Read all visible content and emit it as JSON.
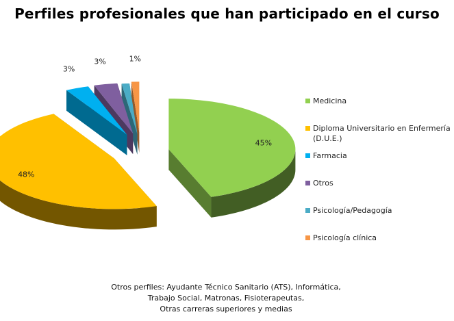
{
  "chart_data": {
    "type": "pie",
    "title": "Perfiles profesionales que han participado en el curso",
    "categories": [
      "Medicina",
      "Diploma Universitario en Enfermería (D.U.E.)",
      "Farmacia",
      "Otros",
      "Psicología/Pedagogía",
      "Psicología clínica"
    ],
    "values": [
      45,
      48,
      3,
      3,
      1,
      1
    ],
    "labels": [
      "45%",
      "48%",
      "3%",
      "3%",
      "",
      "1%"
    ],
    "colors": [
      "#92d050",
      "#ffc000",
      "#00b0f0",
      "#7f5f9f",
      "#4bacc6",
      "#f79646"
    ],
    "exploded": true,
    "three_d": true,
    "legend_position": "right"
  },
  "footnote": {
    "lines": [
      "Otros perfiles: Ayudante Técnico Sanitario (ATS), Informática,",
      "Trabajo Social, Matronas,  Fisioterapeutas,",
      "Otras carreras superiores y medias"
    ]
  }
}
